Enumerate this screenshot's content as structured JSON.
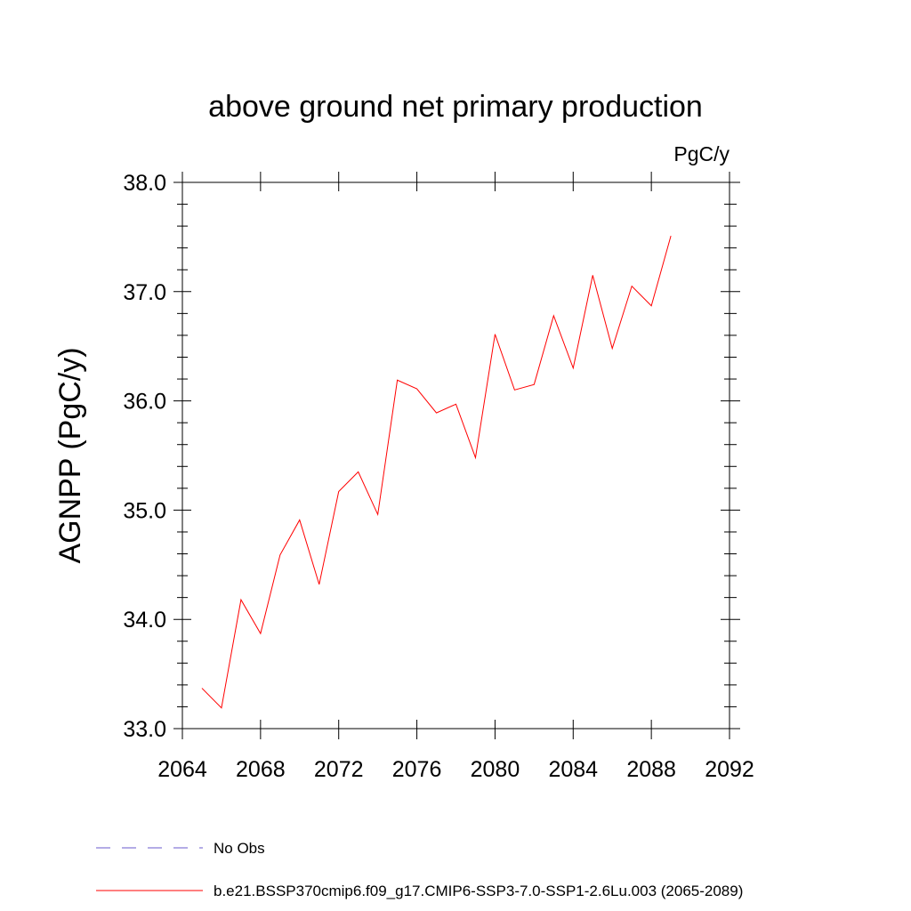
{
  "chart_data": {
    "type": "line",
    "title": "above ground net primary production",
    "units": "PgC/y",
    "ylabel": "AGNPP  (PgC/y)",
    "xlabel": "",
    "xlim": [
      2064,
      2092
    ],
    "ylim": [
      33.0,
      38.0
    ],
    "x_ticks": [
      "2064",
      "2068",
      "2072",
      "2076",
      "2080",
      "2084",
      "2088",
      "2092"
    ],
    "y_ticks": [
      "33.0",
      "34.0",
      "35.0",
      "36.0",
      "37.0",
      "38.0"
    ],
    "grid": false,
    "legend_position": "bottom",
    "x": [
      2065,
      2066,
      2067,
      2068,
      2069,
      2070,
      2071,
      2072,
      2073,
      2074,
      2075,
      2076,
      2077,
      2078,
      2079,
      2080,
      2081,
      2082,
      2083,
      2084,
      2085,
      2086,
      2087,
      2088,
      2089
    ],
    "series": [
      {
        "name": "b.e21.BSSP370cmip6.f09_g17.CMIP6-SSP3-7.0-SSP1-2.6Lu.003 (2065-2089)",
        "color": "#ff0000",
        "style": "solid",
        "values": [
          33.37,
          33.19,
          34.18,
          33.87,
          34.59,
          34.91,
          34.32,
          35.17,
          35.35,
          34.96,
          36.19,
          36.11,
          35.89,
          35.97,
          35.48,
          36.61,
          36.1,
          36.15,
          36.78,
          36.3,
          37.15,
          36.48,
          37.05,
          36.87,
          37.51
        ]
      }
    ],
    "legend": [
      {
        "label": "No Obs",
        "color": "#6a5acd",
        "style": "dashed"
      },
      {
        "label": "b.e21.BSSP370cmip6.f09_g17.CMIP6-SSP3-7.0-SSP1-2.6Lu.003 (2065-2089)",
        "color": "#ff0000",
        "style": "solid"
      }
    ]
  }
}
